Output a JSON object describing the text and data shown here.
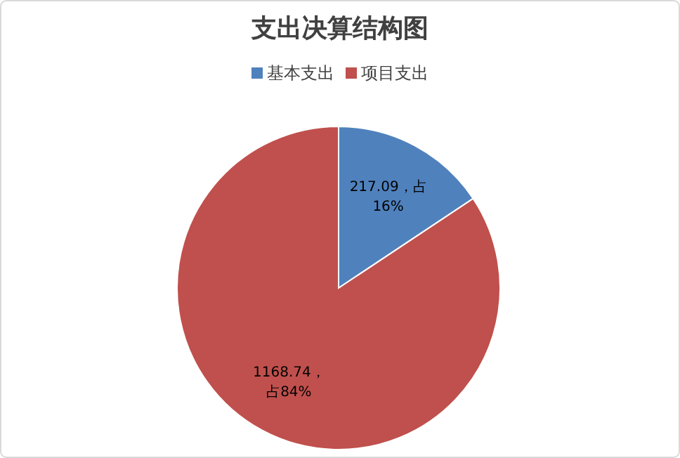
{
  "chart_data": {
    "type": "pie",
    "title": "支出决算结构图",
    "legend": "top",
    "categories": [
      "基本支出",
      "项目支出"
    ],
    "values": [
      217.09,
      1168.74
    ],
    "colors": [
      "#4f81bd",
      "#c0504d"
    ],
    "value_labels": [
      "217.09，占16%",
      "1168.74，占84%"
    ]
  }
}
